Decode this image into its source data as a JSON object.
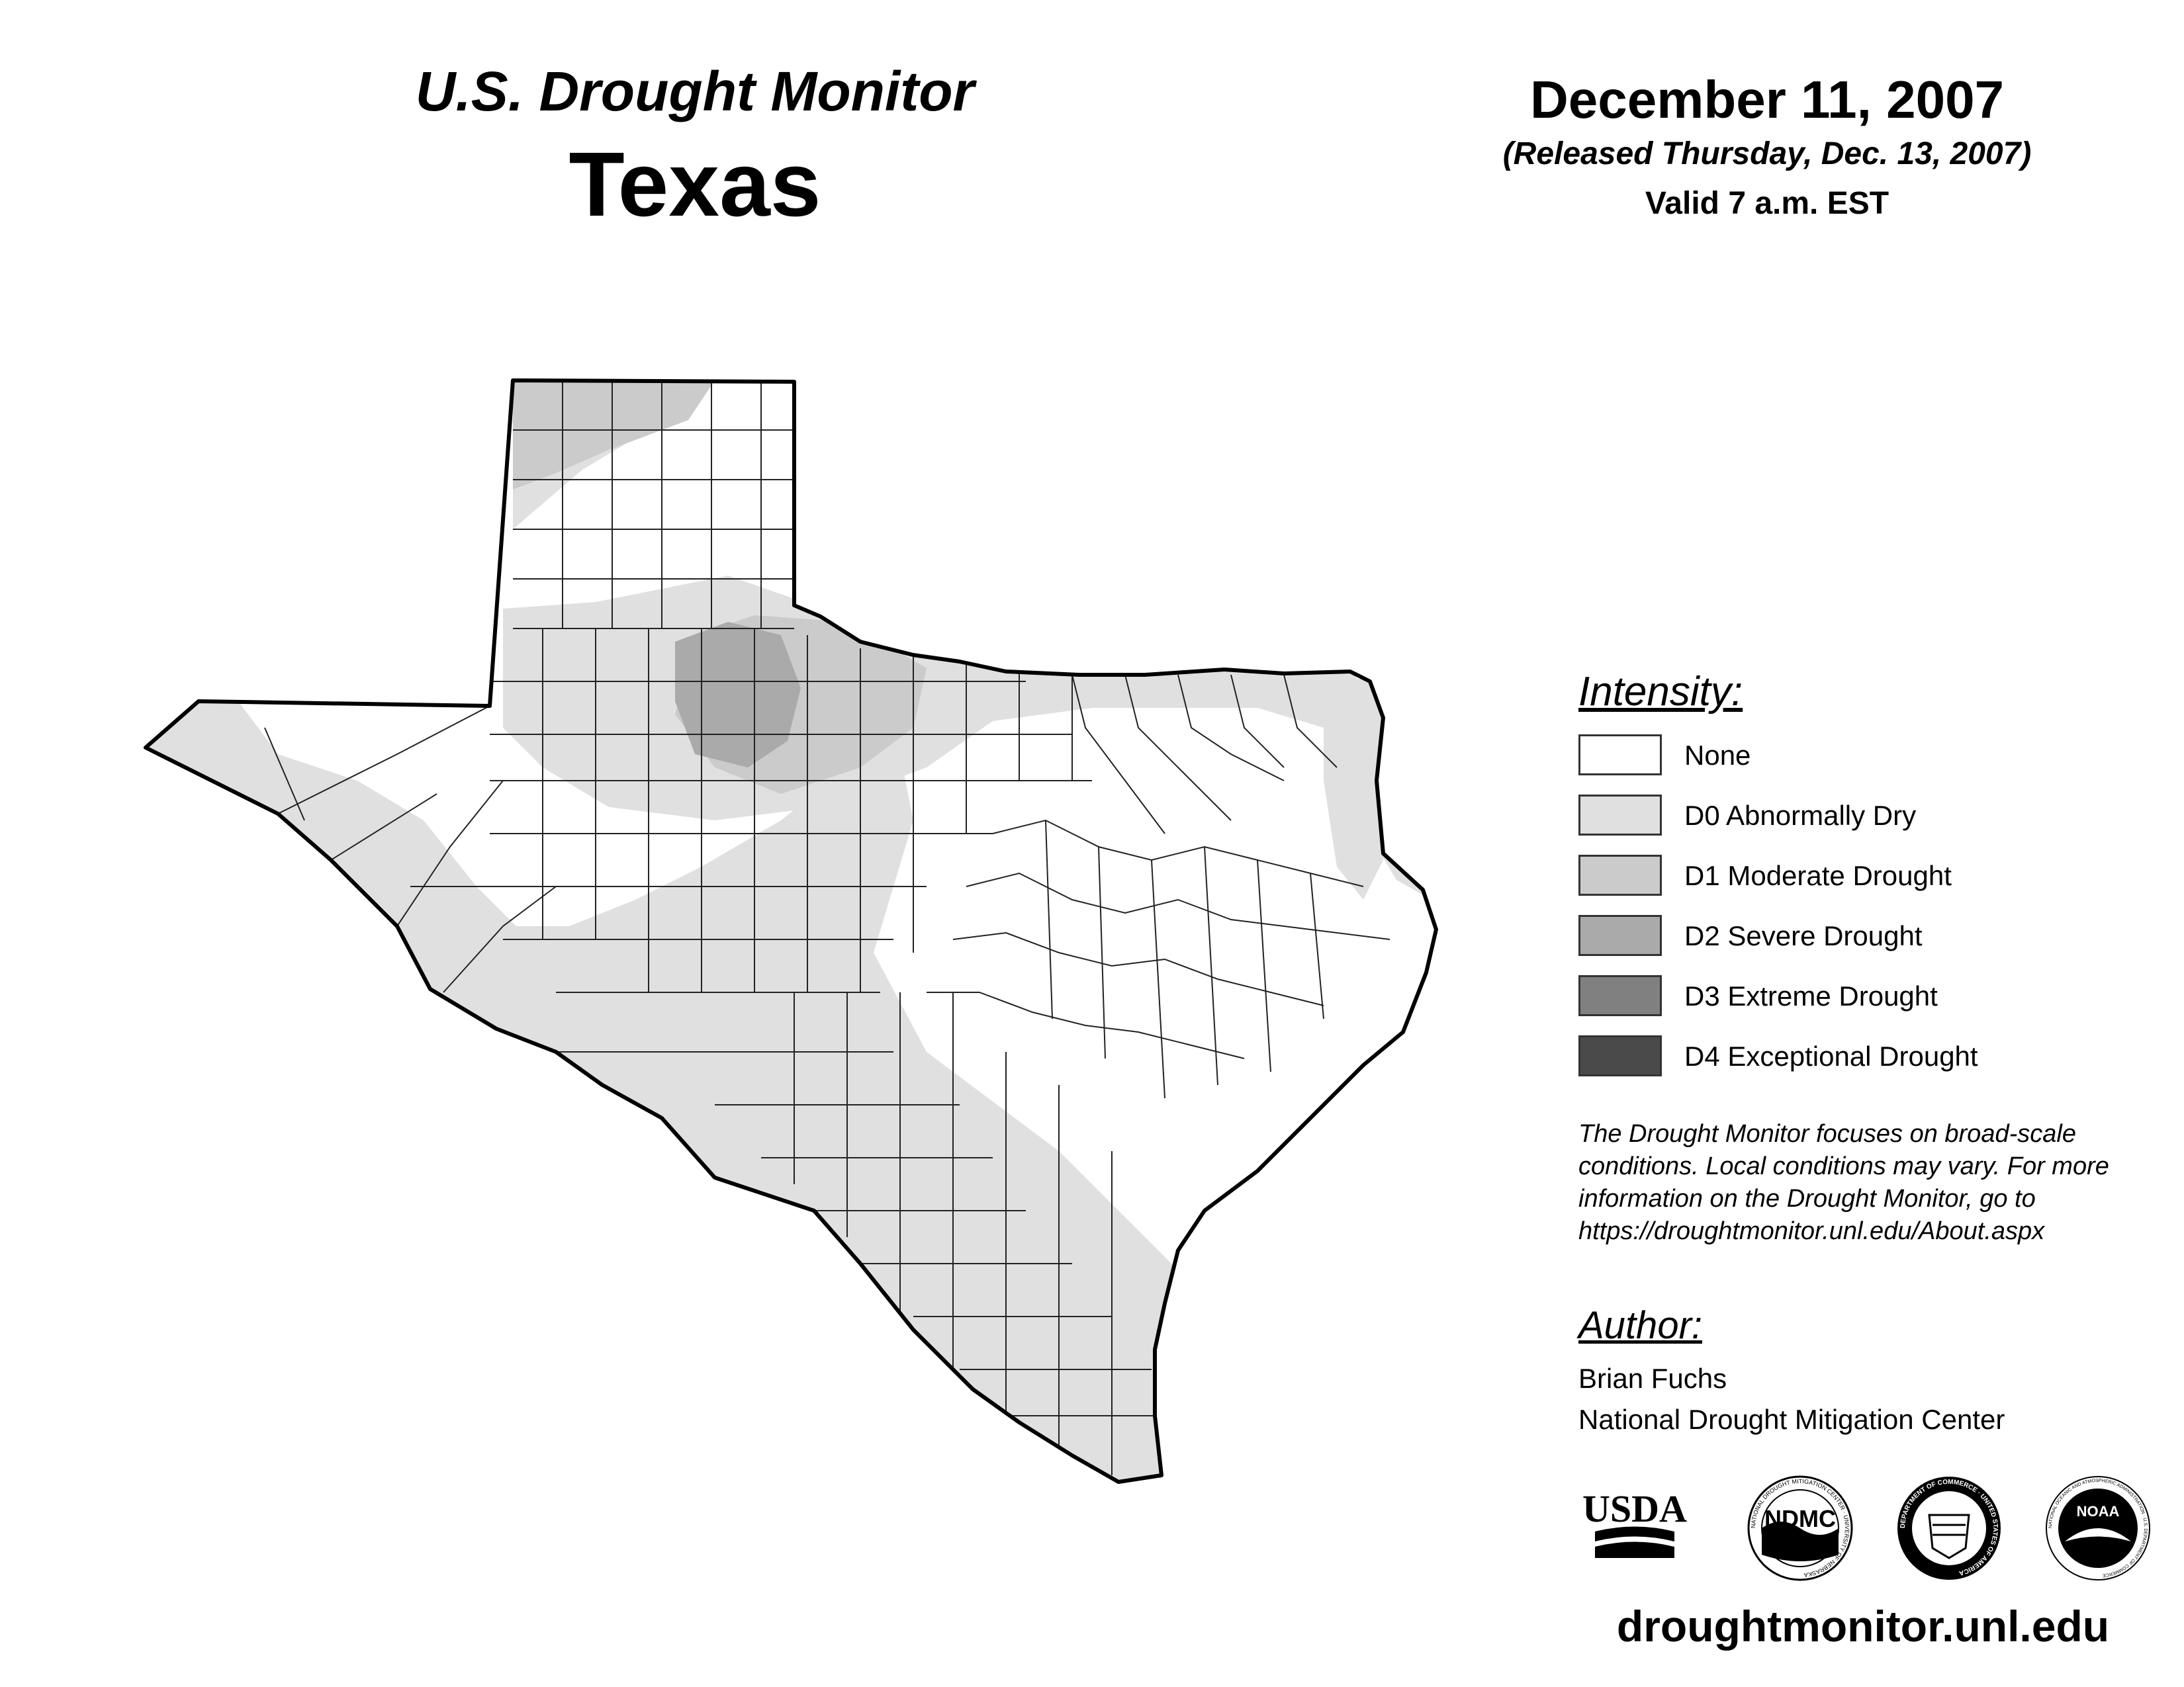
{
  "header": {
    "title": "U.S. Drought Monitor",
    "state": "Texas",
    "date": "December 11, 2007",
    "released": "(Released Thursday, Dec. 13, 2007)",
    "valid": "Valid 7 a.m. EST"
  },
  "legend": {
    "title": "Intensity:",
    "items": [
      {
        "label": "None",
        "color": "#ffffff"
      },
      {
        "label": "D0 Abnormally Dry",
        "color": "#e0e0e0"
      },
      {
        "label": "D1 Moderate Drought",
        "color": "#cbcbcb"
      },
      {
        "label": "D2 Severe Drought",
        "color": "#aaaaaa"
      },
      {
        "label": "D3 Extreme Drought",
        "color": "#808080"
      },
      {
        "label": "D4 Exceptional Drought",
        "color": "#4a4a4a"
      }
    ]
  },
  "note": "The Drought Monitor focuses on broad-scale conditions. Local conditions may vary. For more information on the Drought Monitor, go to https://droughtmonitor.unl.edu/About.aspx",
  "author": {
    "title": "Author:",
    "name": "Brian Fuchs",
    "org": "National Drought Mitigation Center"
  },
  "logos": {
    "usda": "USDA",
    "ndmc": "NDMC",
    "ndmc_ring": "NATIONAL DROUGHT MITIGATION CENTER · UNIVERSITY OF NEBRASKA",
    "commerce_ring": "DEPARTMENT OF COMMERCE · UNITED STATES OF AMERICA",
    "noaa": "NOAA",
    "noaa_ring": "NATIONAL OCEANIC AND ATMOSPHERIC ADMINISTRATION · U.S. DEPARTMENT OF COMMERCE"
  },
  "website": "droughtmonitor.unl.edu",
  "map_colors": {
    "outline": "#000000",
    "county_lines": "#222222"
  }
}
